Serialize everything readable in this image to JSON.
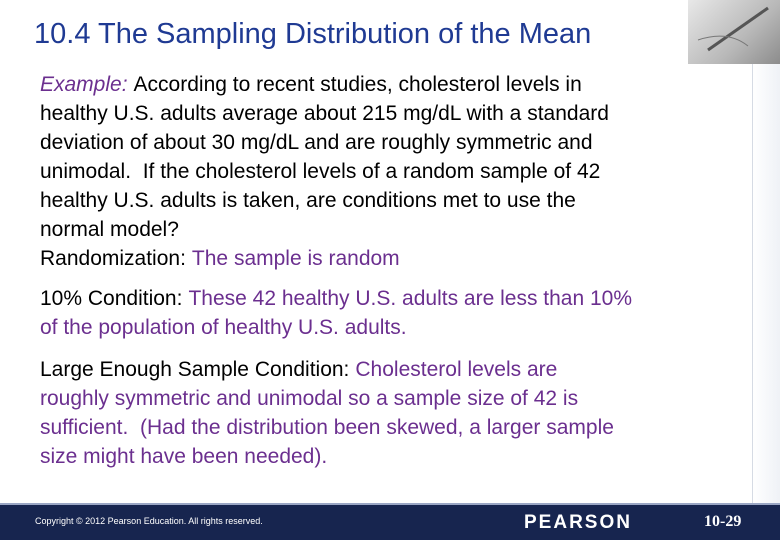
{
  "header": {
    "title": "10.4 The Sampling Distribution of the Mean"
  },
  "paragraphs": [
    {
      "label": "Example:",
      "lines": [
        "According to recent studies, cholesterol levels in",
        "healthy U.S. adults average about 215 mg/dL with a standard",
        "deviation of about 30 mg/dL and are roughly symmetric and",
        "unimodal.  If the cholesterol levels of a random sample of 42",
        "healthy U.S. adults is taken, are conditions met to use the",
        "normal model?"
      ]
    },
    {
      "label": "Randomization:",
      "lines": [
        "The sample is random"
      ]
    },
    {
      "label": "10% Condition:",
      "lines": [
        "These 42 healthy U.S. adults are less than 10%",
        "of the population of healthy U.S. adults."
      ]
    },
    {
      "label": "Large Enough Sample Condition:",
      "lines": [
        "Cholesterol levels are",
        "roughly symmetric and unimodal so a sample size of 42 is",
        "sufficient.  (Had the distribution been skewed, a larger sample",
        "size might have been needed)."
      ]
    }
  ],
  "footer": {
    "copyright": "Copyright © 2012  Pearson Education. All rights reserved.",
    "brand": "PEARSON",
    "page": "10-29"
  }
}
